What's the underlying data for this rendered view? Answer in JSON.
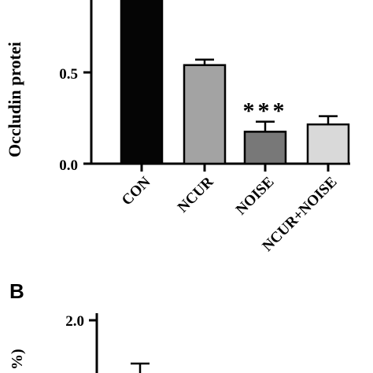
{
  "chart_data": [
    {
      "type": "bar",
      "panel_label": "",
      "ylabel": "Occludin protei",
      "ylim": [
        0.0,
        1.0
      ],
      "yticks": [
        "0.0",
        "0.5"
      ],
      "categories": [
        "CON",
        "NCUR",
        "NOISE",
        "NCUR+NOISE"
      ],
      "values": [
        1.0,
        0.54,
        0.175,
        0.215
      ],
      "errors": [
        0.0,
        0.03,
        0.055,
        0.045
      ],
      "bar_colors": [
        "#050505",
        "#a3a3a3",
        "#787878",
        "#d9d9d9"
      ],
      "annotations": [
        "",
        "",
        "***",
        ""
      ]
    },
    {
      "type": "bar",
      "panel_label": "B",
      "ylabel": "%)",
      "yticks": [
        "2.0"
      ],
      "ylim_top": 2.0
    }
  ]
}
